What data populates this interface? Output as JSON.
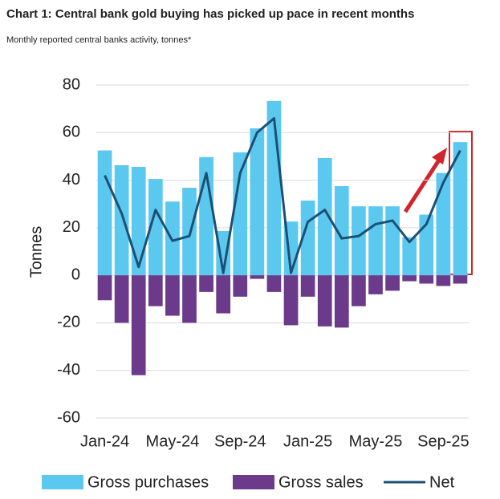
{
  "chart_data": {
    "type": "bar-line",
    "title": "Chart 1: Central bank gold buying has picked up pace in recent months",
    "subtitle": "Monthly reported central banks activity, tonnes*",
    "y_label": "Tonnes",
    "categories": [
      "Jan-24",
      null,
      null,
      null,
      "May-24",
      null,
      null,
      null,
      "Sep-24",
      null,
      null,
      null,
      "Jan-25",
      null,
      null,
      null,
      "May-25",
      null,
      null,
      null,
      "Sep-25",
      null
    ],
    "series": [
      {
        "name": "Gross purchases",
        "color": "#5bc8f0",
        "kind": "bar",
        "values": [
          52.5,
          46.3,
          45.6,
          40.5,
          31,
          36.8,
          49.7,
          18.6,
          51.7,
          61.8,
          73.3,
          22.6,
          31.4,
          49.3,
          37.5,
          29,
          29,
          29,
          16,
          25.5,
          43,
          56
        ]
      },
      {
        "name": "Gross sales",
        "color": "#6b3a8a",
        "kind": "bar",
        "values": [
          -10.5,
          -20,
          -42,
          -13,
          -17,
          -20,
          -7,
          -16,
          -9,
          -1.5,
          -7,
          -21,
          -9,
          -21.5,
          -22,
          -13,
          -8,
          -6.5,
          -2.5,
          -3.5,
          -4.5,
          -3.5
        ]
      },
      {
        "name": "Net",
        "color": "#1d4f73",
        "kind": "line",
        "values": [
          42,
          26,
          3.5,
          27.5,
          14.5,
          16.5,
          43,
          1,
          43,
          60,
          66,
          1,
          22.5,
          27.5,
          15.5,
          16.5,
          21.5,
          23,
          14,
          21.5,
          39,
          52.5
        ]
      }
    ],
    "ylim": [
      -60,
      80
    ],
    "yticks": [
      -60,
      -40,
      -20,
      0,
      20,
      40,
      60,
      80
    ],
    "grid": true
  }
}
